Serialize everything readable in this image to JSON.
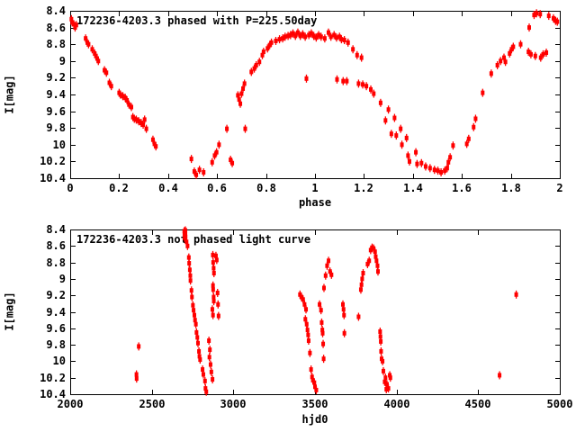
{
  "colors": {
    "background": "#ffffff",
    "points": "#ff0000",
    "axis": "#000000",
    "text": "#000000"
  },
  "chart_data": [
    {
      "type": "scatter",
      "title": "172236-4203.3 phased with P=225.50day",
      "xlabel": "phase",
      "ylabel": "I[mag]",
      "xlim": [
        0,
        2
      ],
      "ylim": [
        8.4,
        10.4
      ],
      "y_axis_inverted": true,
      "grid": false,
      "marker": "red-filled-square-with-vertical-errorbar",
      "xticks": {
        "values": [
          0,
          0.2,
          0.4,
          0.6,
          0.8,
          1,
          1.2,
          1.4,
          1.6,
          1.8,
          2
        ],
        "labels": [
          "0",
          "0.2",
          "0.4",
          "0.6",
          "0.8",
          "1",
          "1.2",
          "1.4",
          "1.6",
          "1.8",
          "2"
        ]
      },
      "yticks": {
        "values": [
          8.4,
          8.6,
          8.8,
          9,
          9.2,
          9.4,
          9.6,
          9.8,
          10,
          10.2,
          10.4
        ],
        "labels": [
          "8.4",
          "8.6",
          "8.8",
          "9",
          "9.2",
          "9.4",
          "9.6",
          "9.8",
          "10",
          "10.2",
          "10.4"
        ]
      },
      "points": [
        [
          0.005,
          8.5
        ],
        [
          0.008,
          8.54
        ],
        [
          0.015,
          8.56
        ],
        [
          0.02,
          8.6
        ],
        [
          0.025,
          8.57
        ],
        [
          0.063,
          8.73
        ],
        [
          0.07,
          8.78
        ],
        [
          0.075,
          8.8
        ],
        [
          0.09,
          8.86
        ],
        [
          0.1,
          8.91
        ],
        [
          0.105,
          8.94
        ],
        [
          0.11,
          8.97
        ],
        [
          0.115,
          9.0
        ],
        [
          0.14,
          9.11
        ],
        [
          0.148,
          9.14
        ],
        [
          0.16,
          9.26
        ],
        [
          0.168,
          9.3
        ],
        [
          0.2,
          9.38
        ],
        [
          0.205,
          9.4
        ],
        [
          0.215,
          9.42
        ],
        [
          0.225,
          9.44
        ],
        [
          0.232,
          9.47
        ],
        [
          0.24,
          9.52
        ],
        [
          0.25,
          9.55
        ],
        [
          0.256,
          9.67
        ],
        [
          0.262,
          9.69
        ],
        [
          0.27,
          9.7
        ],
        [
          0.28,
          9.72
        ],
        [
          0.29,
          9.74
        ],
        [
          0.298,
          9.76
        ],
        [
          0.304,
          9.7
        ],
        [
          0.311,
          9.81
        ],
        [
          0.338,
          9.94
        ],
        [
          0.344,
          9.99
        ],
        [
          0.35,
          10.02
        ],
        [
          0.495,
          10.17
        ],
        [
          0.507,
          10.32
        ],
        [
          0.515,
          10.36
        ],
        [
          0.528,
          10.3
        ],
        [
          0.545,
          10.33
        ],
        [
          0.58,
          10.21
        ],
        [
          0.59,
          10.13
        ],
        [
          0.598,
          10.09
        ],
        [
          0.608,
          10.0
        ],
        [
          0.64,
          9.81
        ],
        [
          0.655,
          10.18
        ],
        [
          0.662,
          10.22
        ],
        [
          0.685,
          9.41
        ],
        [
          0.69,
          9.46
        ],
        [
          0.695,
          9.51
        ],
        [
          0.7,
          9.39
        ],
        [
          0.706,
          9.33
        ],
        [
          0.712,
          9.27
        ],
        [
          0.715,
          9.81
        ],
        [
          0.74,
          9.13
        ],
        [
          0.752,
          9.09
        ],
        [
          0.76,
          9.05
        ],
        [
          0.773,
          9.01
        ],
        [
          0.785,
          8.93
        ],
        [
          0.79,
          8.89
        ],
        [
          0.806,
          8.85
        ],
        [
          0.815,
          8.81
        ],
        [
          0.822,
          8.78
        ],
        [
          0.84,
          8.76
        ],
        [
          0.855,
          8.74
        ],
        [
          0.868,
          8.73
        ],
        [
          0.878,
          8.71
        ],
        [
          0.89,
          8.7
        ],
        [
          0.9,
          8.69
        ],
        [
          0.91,
          8.67
        ],
        [
          0.92,
          8.7
        ],
        [
          0.93,
          8.66
        ],
        [
          0.94,
          8.7
        ],
        [
          0.95,
          8.68
        ],
        [
          0.96,
          8.71
        ],
        [
          0.965,
          9.21
        ],
        [
          0.975,
          8.69
        ],
        [
          0.985,
          8.67
        ],
        [
          0.995,
          8.7
        ],
        [
          1.005,
          8.72
        ],
        [
          1.015,
          8.69
        ],
        [
          1.025,
          8.71
        ],
        [
          1.04,
          8.73
        ],
        [
          1.055,
          8.66
        ],
        [
          1.065,
          8.71
        ],
        [
          1.078,
          8.69
        ],
        [
          1.088,
          8.72
        ],
        [
          1.09,
          9.22
        ],
        [
          1.1,
          8.71
        ],
        [
          1.108,
          8.74
        ],
        [
          1.115,
          9.24
        ],
        [
          1.12,
          8.75
        ],
        [
          1.13,
          9.24
        ],
        [
          1.135,
          8.78
        ],
        [
          1.155,
          8.86
        ],
        [
          1.172,
          8.93
        ],
        [
          1.178,
          9.27
        ],
        [
          1.19,
          8.96
        ],
        [
          1.195,
          9.28
        ],
        [
          1.21,
          9.3
        ],
        [
          1.228,
          9.34
        ],
        [
          1.24,
          9.39
        ],
        [
          1.268,
          9.5
        ],
        [
          1.288,
          9.71
        ],
        [
          1.3,
          9.58
        ],
        [
          1.312,
          9.87
        ],
        [
          1.325,
          9.68
        ],
        [
          1.332,
          9.89
        ],
        [
          1.35,
          9.81
        ],
        [
          1.355,
          10.0
        ],
        [
          1.374,
          9.92
        ],
        [
          1.38,
          10.13
        ],
        [
          1.386,
          10.2
        ],
        [
          1.412,
          10.09
        ],
        [
          1.417,
          10.23
        ],
        [
          1.435,
          10.22
        ],
        [
          1.452,
          10.26
        ],
        [
          1.47,
          10.28
        ],
        [
          1.488,
          10.3
        ],
        [
          1.502,
          10.31
        ],
        [
          1.515,
          10.33
        ],
        [
          1.53,
          10.31
        ],
        [
          1.54,
          10.28
        ],
        [
          1.545,
          10.21
        ],
        [
          1.552,
          10.15
        ],
        [
          1.564,
          10.01
        ],
        [
          1.62,
          9.99
        ],
        [
          1.628,
          9.93
        ],
        [
          1.648,
          9.79
        ],
        [
          1.656,
          9.69
        ],
        [
          1.685,
          9.38
        ],
        [
          1.72,
          9.15
        ],
        [
          1.745,
          9.05
        ],
        [
          1.758,
          9.0
        ],
        [
          1.772,
          8.96
        ],
        [
          1.778,
          9.01
        ],
        [
          1.795,
          8.91
        ],
        [
          1.803,
          8.86
        ],
        [
          1.81,
          8.83
        ],
        [
          1.84,
          8.8
        ],
        [
          1.872,
          8.89
        ],
        [
          1.875,
          8.6
        ],
        [
          1.882,
          8.92
        ],
        [
          1.895,
          8.45
        ],
        [
          1.9,
          8.94
        ],
        [
          1.905,
          8.43
        ],
        [
          1.92,
          8.44
        ],
        [
          1.922,
          8.96
        ],
        [
          1.932,
          8.92
        ],
        [
          1.945,
          8.9
        ],
        [
          1.955,
          8.46
        ],
        [
          1.974,
          8.49
        ],
        [
          1.983,
          8.52
        ],
        [
          1.99,
          8.53
        ]
      ]
    },
    {
      "type": "scatter",
      "title": "172236-4203.3 not phased light curve",
      "xlabel": "hjd0",
      "ylabel": "I[mag]",
      "xlim": [
        2000,
        5000
      ],
      "ylim": [
        8.4,
        10.4
      ],
      "y_axis_inverted": true,
      "grid": false,
      "marker": "red-filled-square-with-vertical-errorbar",
      "xticks": {
        "values": [
          2000,
          2500,
          3000,
          3500,
          4000,
          4500,
          5000
        ],
        "labels": [
          "2000",
          "2500",
          "3000",
          "3500",
          "4000",
          "4500",
          "5000"
        ]
      },
      "yticks": {
        "values": [
          8.4,
          8.6,
          8.8,
          9,
          9.2,
          9.4,
          9.6,
          9.8,
          10,
          10.2,
          10.4
        ],
        "labels": [
          "8.4",
          "8.6",
          "8.8",
          "9",
          "9.2",
          "9.4",
          "9.6",
          "9.8",
          "10",
          "10.2",
          "10.4"
        ]
      },
      "points": [
        [
          2406,
          10.16
        ],
        [
          2407,
          10.21
        ],
        [
          2420,
          9.82
        ],
        [
          2699,
          8.42
        ],
        [
          2700,
          8.46
        ],
        [
          2701,
          8.5
        ],
        [
          2706,
          8.41
        ],
        [
          2706,
          8.45
        ],
        [
          2707,
          8.49
        ],
        [
          2713,
          8.55
        ],
        [
          2719,
          8.6
        ],
        [
          2727,
          8.74
        ],
        [
          2729,
          8.81
        ],
        [
          2733,
          8.89
        ],
        [
          2736,
          8.96
        ],
        [
          2737,
          9.02
        ],
        [
          2743,
          9.14
        ],
        [
          2746,
          9.22
        ],
        [
          2752,
          9.32
        ],
        [
          2756,
          9.38
        ],
        [
          2761,
          9.44
        ],
        [
          2765,
          9.5
        ],
        [
          2770,
          9.55
        ],
        [
          2774,
          9.65
        ],
        [
          2779,
          9.71
        ],
        [
          2783,
          9.78
        ],
        [
          2789,
          9.88
        ],
        [
          2792,
          9.94
        ],
        [
          2796,
          9.98
        ],
        [
          2811,
          10.1
        ],
        [
          2816,
          10.16
        ],
        [
          2826,
          10.24
        ],
        [
          2829,
          10.33
        ],
        [
          2834,
          10.37
        ],
        [
          2850,
          9.75
        ],
        [
          2853,
          9.95
        ],
        [
          2856,
          9.86
        ],
        [
          2860,
          10.04
        ],
        [
          2865,
          10.13
        ],
        [
          2872,
          10.22
        ],
        [
          2871,
          9.37
        ],
        [
          2874,
          8.71
        ],
        [
          2875,
          9.44
        ],
        [
          2875,
          9.08
        ],
        [
          2876,
          9.13
        ],
        [
          2876,
          8.8
        ],
        [
          2879,
          9.22
        ],
        [
          2879,
          8.87
        ],
        [
          2880,
          9.27
        ],
        [
          2881,
          8.93
        ],
        [
          2893,
          8.72
        ],
        [
          2898,
          8.77
        ],
        [
          2903,
          9.17
        ],
        [
          2906,
          9.31
        ],
        [
          2909,
          9.45
        ],
        [
          3408,
          9.19
        ],
        [
          3417,
          9.22
        ],
        [
          3427,
          9.25
        ],
        [
          3436,
          9.31
        ],
        [
          3441,
          9.49
        ],
        [
          3445,
          9.37
        ],
        [
          3449,
          9.55
        ],
        [
          3454,
          9.62
        ],
        [
          3458,
          9.68
        ],
        [
          3461,
          9.75
        ],
        [
          3469,
          9.9
        ],
        [
          3476,
          10.1
        ],
        [
          3482,
          10.19
        ],
        [
          3487,
          10.23
        ],
        [
          3496,
          10.26
        ],
        [
          3500,
          10.31
        ],
        [
          3508,
          10.35
        ],
        [
          3528,
          9.31
        ],
        [
          3537,
          9.38
        ],
        [
          3541,
          9.53
        ],
        [
          3545,
          9.62
        ],
        [
          3547,
          9.66
        ],
        [
          3550,
          9.79
        ],
        [
          3553,
          9.97
        ],
        [
          3555,
          9.11
        ],
        [
          3565,
          8.96
        ],
        [
          3574,
          8.84
        ],
        [
          3583,
          8.78
        ],
        [
          3592,
          8.91
        ],
        [
          3601,
          8.95
        ],
        [
          3671,
          9.31
        ],
        [
          3675,
          9.37
        ],
        [
          3678,
          9.44
        ],
        [
          3680,
          9.66
        ],
        [
          3767,
          9.46
        ],
        [
          3781,
          9.13
        ],
        [
          3785,
          9.07
        ],
        [
          3789,
          9.0
        ],
        [
          3795,
          8.93
        ],
        [
          3822,
          8.82
        ],
        [
          3832,
          8.78
        ],
        [
          3841,
          8.65
        ],
        [
          3850,
          8.62
        ],
        [
          3859,
          8.63
        ],
        [
          3868,
          8.67
        ],
        [
          3872,
          8.73
        ],
        [
          3877,
          8.78
        ],
        [
          3883,
          8.84
        ],
        [
          3886,
          8.91
        ],
        [
          3899,
          9.64
        ],
        [
          3901,
          9.7
        ],
        [
          3903,
          9.76
        ],
        [
          3905,
          9.88
        ],
        [
          3908,
          9.97
        ],
        [
          3914,
          10.0
        ],
        [
          3919,
          10.12
        ],
        [
          3927,
          10.25
        ],
        [
          3932,
          10.2
        ],
        [
          3937,
          10.34
        ],
        [
          3941,
          10.28
        ],
        [
          3950,
          10.33
        ],
        [
          3958,
          10.17
        ],
        [
          3962,
          10.2
        ],
        [
          4631,
          10.17
        ],
        [
          4733,
          9.19
        ]
      ]
    }
  ]
}
